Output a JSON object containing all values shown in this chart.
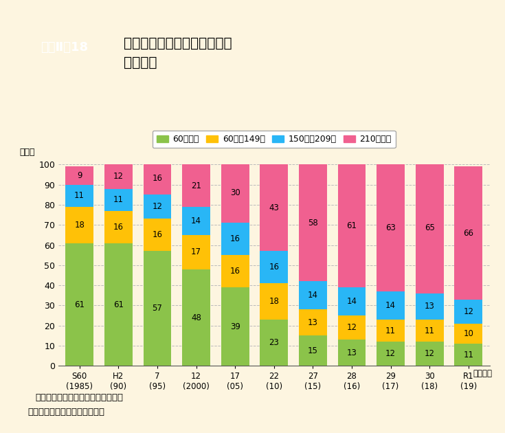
{
  "categories": [
    "S60\n(1985)",
    "H2\n(90)",
    "7\n(95)",
    "12\n(2000)",
    "17\n(05)",
    "22\n(10)",
    "27\n(15)",
    "28\n(16)",
    "29\n(17)",
    "30\n(18)",
    "R1\n(19)"
  ],
  "green": [
    61,
    61,
    57,
    48,
    39,
    23,
    15,
    13,
    12,
    12,
    11
  ],
  "yellow": [
    18,
    16,
    16,
    17,
    16,
    18,
    13,
    12,
    11,
    11,
    10
  ],
  "blue": [
    11,
    11,
    12,
    14,
    16,
    16,
    14,
    14,
    14,
    13,
    12
  ],
  "pink": [
    9,
    12,
    16,
    21,
    30,
    43,
    58,
    61,
    63,
    65,
    66
  ],
  "green_color": "#8bc34a",
  "yellow_color": "#ffc107",
  "blue_color": "#29b6f6",
  "pink_color": "#f06090",
  "legend_labels": [
    "60日未満",
    "60日～149日",
    "150日～209日",
    "210日以上"
  ],
  "ylabel": "（％）",
  "xlabel_suffix": "（年度）",
  "title_box_text": "資料Ⅱ－18",
  "title_main_line1": "森林組合の雇用労働者の年間",
  "title_main_line2": "就業日数",
  "note1": "注：計の不一致は四捨五入による。",
  "note2": "資料：林野庁「森林組合統計」",
  "bg_color": "#fdf5e0",
  "title_box_color": "#2e7d32",
  "grid_color": "#bbbbbb",
  "ylim": [
    0,
    100
  ],
  "yticks": [
    0,
    10,
    20,
    30,
    40,
    50,
    60,
    70,
    80,
    90,
    100
  ]
}
